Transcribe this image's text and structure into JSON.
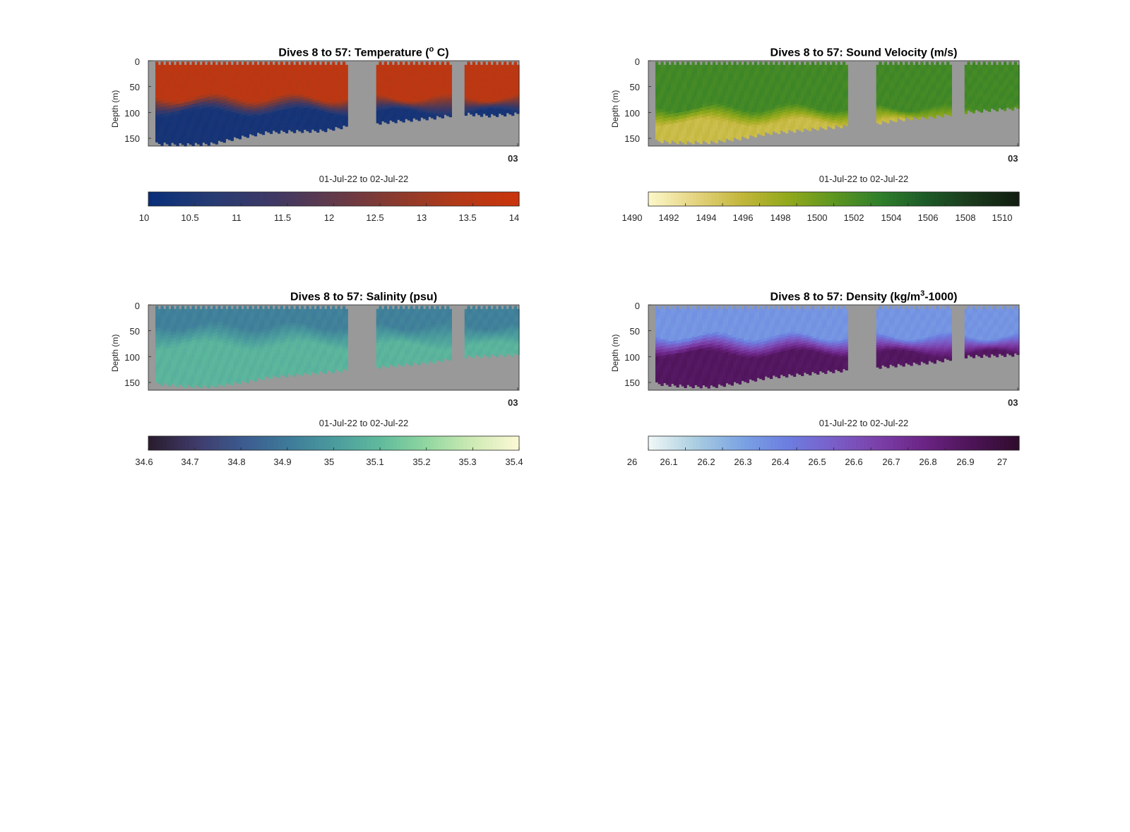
{
  "chart_data": [
    {
      "type": "heatmap",
      "title_main": "Dives 8 to 57: Temperature (",
      "title_sup": "o",
      "title_tail": " C)",
      "ylabel": "Depth (m)",
      "xlabel": "01-Jul-22 to 02-Jul-22",
      "x_end_label": "03",
      "ytick_labels": [
        "0",
        "50",
        "100",
        "150"
      ],
      "yticks": [
        0,
        50,
        100,
        150
      ],
      "ylim": [
        0,
        165
      ],
      "colorbar": {
        "min": 10,
        "max": 14,
        "tick_labels": [
          "10",
          "10.5",
          "11",
          "11.5",
          "12",
          "12.5",
          "13",
          "13.5",
          "14"
        ],
        "ticks": [
          10,
          10.5,
          11,
          11.5,
          12,
          12.5,
          13,
          13.5,
          14
        ],
        "colors": [
          "#0a2f7a",
          "#263b73",
          "#3e3865",
          "#623a4a",
          "#8a3a2e",
          "#b23a18",
          "#c9340c"
        ]
      },
      "surface_value": 13.6,
      "bottom_value": 10.3,
      "cline_depth": [
        70,
        100
      ],
      "max_depth": [
        160,
        162,
        160,
        148,
        138,
        136,
        135,
        125,
        120,
        115,
        110,
        102,
        106,
        102
      ],
      "segments_dives": [
        [
          8,
          33
        ],
        [
          38,
          47
        ],
        [
          50,
          57
        ]
      ]
    },
    {
      "type": "heatmap",
      "title_main": "Dives 8 to 57: Sound Velocity (m/s)",
      "title_sup": "",
      "title_tail": "",
      "ylabel": "Depth (m)",
      "xlabel": "01-Jul-22 to 02-Jul-22",
      "x_end_label": "03",
      "ytick_labels": [
        "0",
        "50",
        "100",
        "150"
      ],
      "yticks": [
        0,
        50,
        100,
        150
      ],
      "ylim": [
        0,
        165
      ],
      "colorbar": {
        "min": 1490,
        "max": 1510,
        "tick_labels": [
          "1490",
          "1492",
          "1494",
          "1496",
          "1498",
          "1500",
          "1502",
          "1504",
          "1506",
          "1508",
          "1510"
        ],
        "ticks": [
          1490,
          1492,
          1494,
          1496,
          1498,
          1500,
          1502,
          1504,
          1506,
          1508,
          1510
        ],
        "colors": [
          "#fbf6c7",
          "#e4d37f",
          "#c2b63a",
          "#92a91c",
          "#5e9620",
          "#2f7f2b",
          "#1d5a28",
          "#1a3a1c",
          "#111d10"
        ]
      },
      "surface_value": 1501.5,
      "bottom_value": 1494.5,
      "cline_depth": [
        90,
        120
      ],
      "max_depth": [
        155,
        158,
        157,
        150,
        140,
        135,
        130,
        125,
        120,
        112,
        108,
        100,
        95,
        92
      ],
      "segments_dives": [
        [
          8,
          33
        ],
        [
          38,
          47
        ],
        [
          50,
          57
        ]
      ]
    },
    {
      "type": "heatmap",
      "title_main": "Dives 8 to 57: Salinity (psu)",
      "title_sup": "",
      "title_tail": "",
      "ylabel": "Depth (m)",
      "xlabel": "01-Jul-22 to 02-Jul-22",
      "x_end_label": "03",
      "ytick_labels": [
        "0",
        "50",
        "100",
        "150"
      ],
      "yticks": [
        0,
        50,
        100,
        150
      ],
      "ylim": [
        0,
        165
      ],
      "colorbar": {
        "min": 34.6,
        "max": 35.4,
        "tick_labels": [
          "34.6",
          "34.7",
          "34.8",
          "34.9",
          "35",
          "35.1",
          "35.2",
          "35.3",
          "35.4"
        ],
        "ticks": [
          34.6,
          34.7,
          34.8,
          34.9,
          35,
          35.1,
          35.2,
          35.3,
          35.4
        ],
        "colors": [
          "#2a1d2e",
          "#3f3a6a",
          "#3c5a8e",
          "#3e7a99",
          "#4a9b9d",
          "#5fba9c",
          "#8fd6a0",
          "#cdeab3",
          "#fbf8d5"
        ]
      },
      "surface_value": 34.92,
      "bottom_value": 35.08,
      "cline_depth": [
        40,
        80
      ],
      "max_depth": [
        152,
        157,
        158,
        150,
        140,
        135,
        130,
        125,
        120,
        115,
        110,
        100,
        98,
        96
      ],
      "segments_dives": [
        [
          8,
          33
        ],
        [
          38,
          47
        ],
        [
          50,
          57
        ]
      ]
    },
    {
      "type": "heatmap",
      "title_main": "Dives 8 to 57: Density (kg/m",
      "title_sup": "3",
      "title_tail": "-1000)",
      "ylabel": "Depth (m)",
      "xlabel": "01-Jul-22 to 02-Jul-22",
      "x_end_label": "03",
      "ytick_labels": [
        "0",
        "50",
        "100",
        "150"
      ],
      "yticks": [
        0,
        50,
        100,
        150
      ],
      "ylim": [
        0,
        165
      ],
      "colorbar": {
        "min": 26,
        "max": 27,
        "tick_labels": [
          "26",
          "26.1",
          "26.2",
          "26.3",
          "26.4",
          "26.5",
          "26.6",
          "26.7",
          "26.8",
          "26.9",
          "27"
        ],
        "ticks": [
          26,
          26.1,
          26.2,
          26.3,
          26.4,
          26.5,
          26.6,
          26.7,
          26.8,
          26.9,
          27
        ],
        "colors": [
          "#eef6f6",
          "#a9cde0",
          "#7ba3e3",
          "#6c7ee0",
          "#7a5ec8",
          "#7b3fa8",
          "#6a2383",
          "#4d1457",
          "#300c2e"
        ]
      },
      "surface_value": 26.3,
      "bottom_value": 26.85,
      "cline_depth": [
        60,
        95
      ],
      "max_depth": [
        152,
        157,
        158,
        150,
        140,
        135,
        130,
        125,
        120,
        115,
        110,
        100,
        98,
        96
      ],
      "segments_dives": [
        [
          8,
          33
        ],
        [
          38,
          47
        ],
        [
          50,
          57
        ]
      ]
    }
  ]
}
